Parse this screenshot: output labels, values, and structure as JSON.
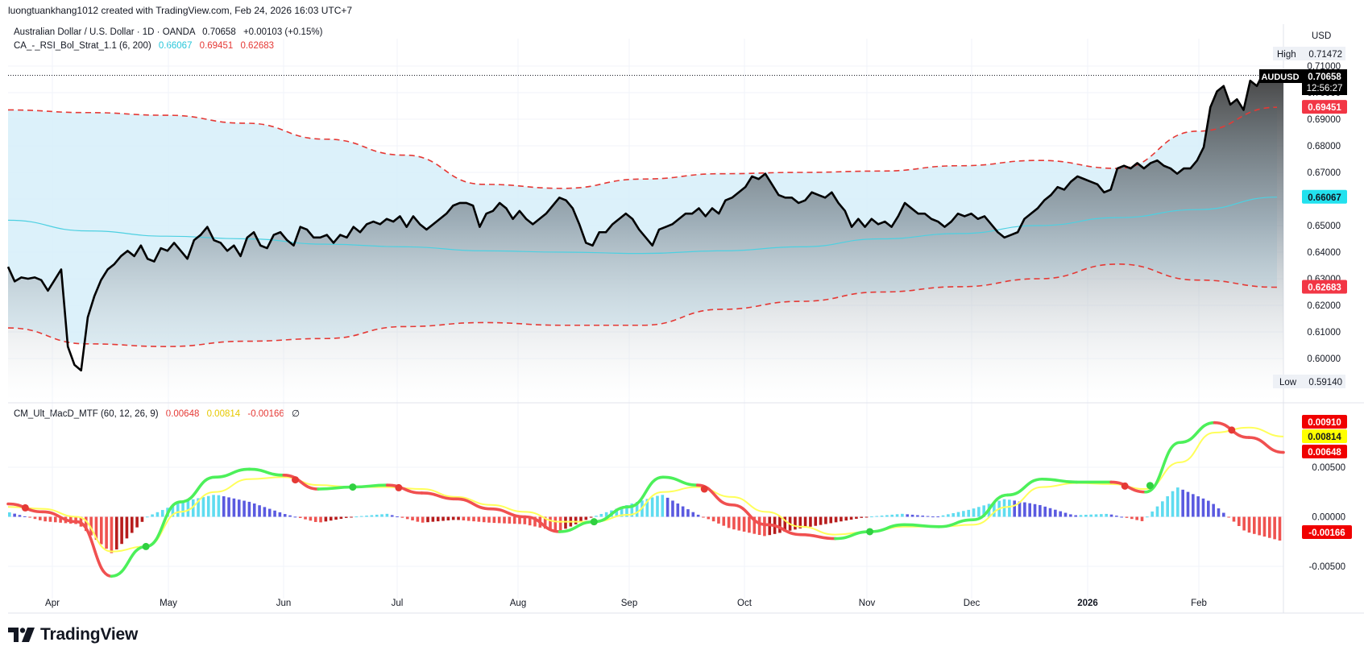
{
  "header": {
    "credit": "luongtuankhang1012 created with TradingView.com, Feb 24, 2026 16:03 UTC+7"
  },
  "symbol": {
    "name": "Australian Dollar / U.S. Dollar · 1D · OANDA",
    "last": "0.70658",
    "change": "+0.00103 (+0.15%)"
  },
  "indicator_bb": {
    "name": "CA_-_RSI_Bol_Strat_1.1 (6, 200)",
    "v1": "0.66067",
    "v2": "0.69451",
    "v3": "0.62683"
  },
  "indicator_macd": {
    "name": "CM_Ult_MacD_MTF (60, 12, 26, 9)",
    "v1": "0.00648",
    "v2": "0.00814",
    "v3": "-0.00166",
    "v4": "∅"
  },
  "price_scale": {
    "currency": "USD",
    "ticks": [
      "0.71000",
      "0.70000",
      "0.69000",
      "0.68000",
      "0.67000",
      "0.66000",
      "0.65000",
      "0.64000",
      "0.63000",
      "0.62000",
      "0.61000",
      "0.60000"
    ],
    "high_label": "High",
    "high_value": "0.71472",
    "low_label": "Low",
    "low_value": "0.59140",
    "symbol_tag": "AUDUSD",
    "last_value": "0.70658",
    "countdown": "12:56:27",
    "upper_band_value": "0.69451",
    "basis_value": "0.66067",
    "lower_band_value": "0.62683"
  },
  "macd_scale": {
    "ticks": [
      "0.00500",
      "0.00000",
      "-0.00500"
    ],
    "signal_value": "0.00814",
    "macd_value": "0.00648",
    "hist_value": "-0.00166",
    "top_value": "0.00910"
  },
  "time_axis": {
    "labels": [
      "Apr",
      "May",
      "Jun",
      "Jul",
      "Aug",
      "Sep",
      "Oct",
      "Nov",
      "Dec",
      "2026",
      "Feb"
    ]
  },
  "colors": {
    "price_line": "#000000",
    "band": "#e53935",
    "basis": "#4dd0e1",
    "band_fill": "#d6eef9",
    "macd_up": "#4cf05a",
    "macd_down": "#f05050",
    "signal": "#ffff5a",
    "hist_pos_strong": "#5fdcf0",
    "hist_pos_weak": "#5a5ae0",
    "hist_neg_strong": "#ef5350",
    "hist_neg_weak": "#b71c1c"
  },
  "footer": {
    "brand": "TradingView"
  },
  "chart_data": [
    {
      "type": "line",
      "symbol": "AUDUSD",
      "y_unit": "USD",
      "x_labels": [
        "Apr",
        "May",
        "Jun",
        "Jul",
        "Aug",
        "Sep",
        "Oct",
        "Nov",
        "Dec",
        "2026",
        "Feb"
      ],
      "ylim": [
        0.5914,
        0.7147
      ],
      "series": [
        {
          "name": "AUDUSD",
          "values": [
            0.6345,
            0.629,
            0.6305,
            0.63,
            0.6305,
            0.6295,
            0.6255,
            0.6295,
            0.6335,
            0.6045,
            0.5976,
            0.5955,
            0.6155,
            0.6235,
            0.6295,
            0.6335,
            0.6355,
            0.6385,
            0.6405,
            0.6385,
            0.6425,
            0.6375,
            0.6365,
            0.6415,
            0.6405,
            0.6435,
            0.6405,
            0.6375,
            0.6445,
            0.6465,
            0.6495,
            0.6445,
            0.6435,
            0.6405,
            0.6425,
            0.6385,
            0.6455,
            0.6475,
            0.6425,
            0.6415,
            0.6465,
            0.6475,
            0.6445,
            0.6425,
            0.6495,
            0.6485,
            0.6455,
            0.6455,
            0.6465,
            0.6435,
            0.6465,
            0.6455,
            0.6495,
            0.6475,
            0.6505,
            0.6515,
            0.6505,
            0.6525,
            0.6515,
            0.6535,
            0.6495,
            0.6535,
            0.6505,
            0.6485,
            0.6505,
            0.6525,
            0.6545,
            0.6575,
            0.6585,
            0.6585,
            0.6575,
            0.6495,
            0.6545,
            0.6555,
            0.6585,
            0.6565,
            0.6525,
            0.6555,
            0.6525,
            0.6505,
            0.6525,
            0.6545,
            0.6575,
            0.6605,
            0.6595,
            0.6565,
            0.6505,
            0.6435,
            0.6425,
            0.6475,
            0.6475,
            0.6505,
            0.6525,
            0.6545,
            0.6525,
            0.6485,
            0.6455,
            0.6425,
            0.6485,
            0.6495,
            0.6505,
            0.6525,
            0.6545,
            0.6545,
            0.6565,
            0.6535,
            0.6565,
            0.6545,
            0.6595,
            0.6605,
            0.6625,
            0.6645,
            0.6685,
            0.6675,
            0.6695,
            0.6655,
            0.6615,
            0.6605,
            0.6605,
            0.6585,
            0.6595,
            0.6625,
            0.6615,
            0.6605,
            0.6625,
            0.6585,
            0.6555,
            0.6495,
            0.6525,
            0.6495,
            0.6525,
            0.6505,
            0.6515,
            0.6495,
            0.6535,
            0.6585,
            0.6565,
            0.6545,
            0.6545,
            0.6525,
            0.6515,
            0.6495,
            0.6515,
            0.6545,
            0.6535,
            0.6545,
            0.6525,
            0.6535,
            0.6505,
            0.6475,
            0.6455,
            0.6465,
            0.6475,
            0.6525,
            0.6545,
            0.6565,
            0.6595,
            0.6615,
            0.6645,
            0.6635,
            0.6665,
            0.6685,
            0.6675,
            0.6665,
            0.6655,
            0.6625,
            0.6635,
            0.6715,
            0.6725,
            0.6715,
            0.6735,
            0.6715,
            0.6735,
            0.6745,
            0.6725,
            0.6715,
            0.6695,
            0.6715,
            0.6715,
            0.6745,
            0.6795,
            0.6945,
            0.7005,
            0.7025,
            0.6955,
            0.6975,
            0.6935,
            0.7045,
            0.7025,
            0.7075,
            0.7045,
            0.7065,
            0.7065
          ]
        },
        {
          "name": "basis",
          "values": [
            0.652,
            0.648,
            0.646,
            0.645,
            0.643,
            0.642,
            0.6405,
            0.64,
            0.6395,
            0.6405,
            0.642,
            0.645,
            0.647,
            0.65,
            0.653,
            0.656,
            0.6607
          ]
        },
        {
          "name": "upper band",
          "values": [
            0.6935,
            0.6925,
            0.6915,
            0.6885,
            0.6825,
            0.6765,
            0.6655,
            0.664,
            0.6675,
            0.6695,
            0.67,
            0.6705,
            0.6725,
            0.6745,
            0.6715,
            0.6855,
            0.6945
          ]
        },
        {
          "name": "lower band",
          "values": [
            0.6115,
            0.6055,
            0.6045,
            0.6065,
            0.6075,
            0.612,
            0.6135,
            0.6125,
            0.6125,
            0.6185,
            0.6215,
            0.625,
            0.627,
            0.63,
            0.6355,
            0.6295,
            0.6268
          ]
        }
      ]
    },
    {
      "type": "line",
      "title": "CM_Ult_MacD_MTF (60, 12, 26, 9)",
      "ylim": [
        -0.006,
        0.01
      ],
      "series": [
        {
          "name": "MacD",
          "values": [
            0.0013,
            0.0005,
            -0.0005,
            -0.006,
            -0.003,
            0.0015,
            0.004,
            0.0048,
            0.0042,
            0.0028,
            0.003,
            0.0032,
            0.0024,
            0.0018,
            0.0008,
            0.0,
            -0.0015,
            -0.0005,
            0.001,
            0.004,
            0.0032,
            0.0012,
            -0.0008,
            -0.0018,
            -0.0022,
            -0.0015,
            -0.0008,
            -0.001,
            -0.0003,
            0.0022,
            0.0038,
            0.0035,
            0.0035,
            0.0025,
            0.0075,
            0.0095,
            0.008,
            0.0065
          ]
        },
        {
          "name": "Signal",
          "values": [
            0.001,
            0.0008,
            0.0,
            -0.0035,
            -0.003,
            0.0005,
            0.0025,
            0.0038,
            0.004,
            0.0032,
            0.003,
            0.003,
            0.0028,
            0.002,
            0.0012,
            0.0005,
            -0.0005,
            -0.0005,
            0.0002,
            0.0025,
            0.003,
            0.002,
            0.0005,
            -0.001,
            -0.0018,
            -0.0015,
            -0.001,
            -0.001,
            -0.0008,
            0.001,
            0.003,
            0.0034,
            0.0033,
            0.0028,
            0.0055,
            0.0085,
            0.009,
            0.0081
          ]
        }
      ]
    }
  ]
}
